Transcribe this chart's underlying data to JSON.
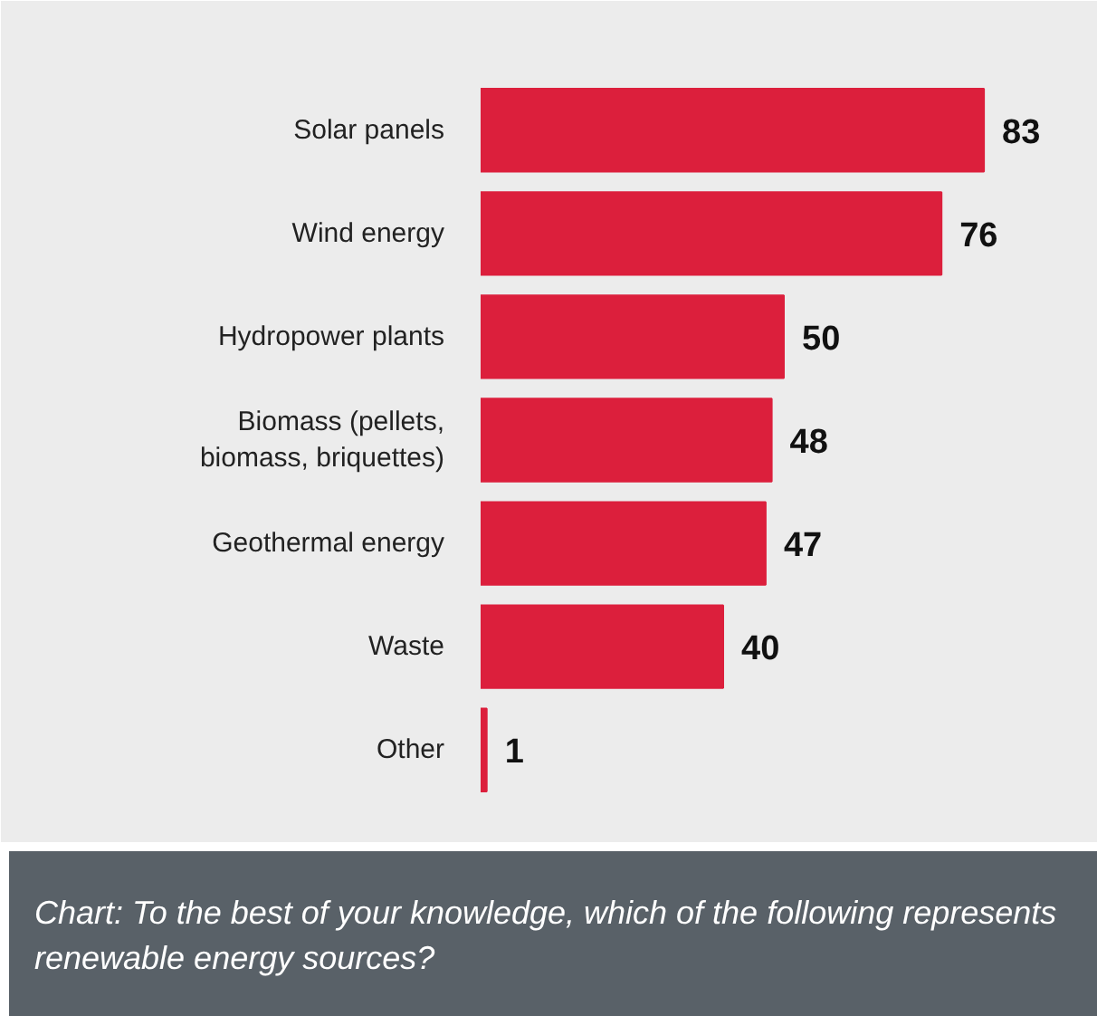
{
  "chart_data": {
    "type": "bar",
    "orientation": "horizontal",
    "categories": [
      "Solar panels",
      "Wind energy",
      "Hydropower plants",
      "Biomass (pellets, biomass, briquettes)",
      "Geothermal energy",
      "Waste",
      "Other"
    ],
    "values": [
      83,
      76,
      50,
      48,
      47,
      40,
      1
    ],
    "color": "#dc1f3c",
    "xlim": [
      0,
      100
    ],
    "data_labels": true,
    "tick_labels": false,
    "grid": false,
    "annotations": [
      "Chart: To the best of your knowledge, which of the following represents renewable energy sources?"
    ]
  }
}
